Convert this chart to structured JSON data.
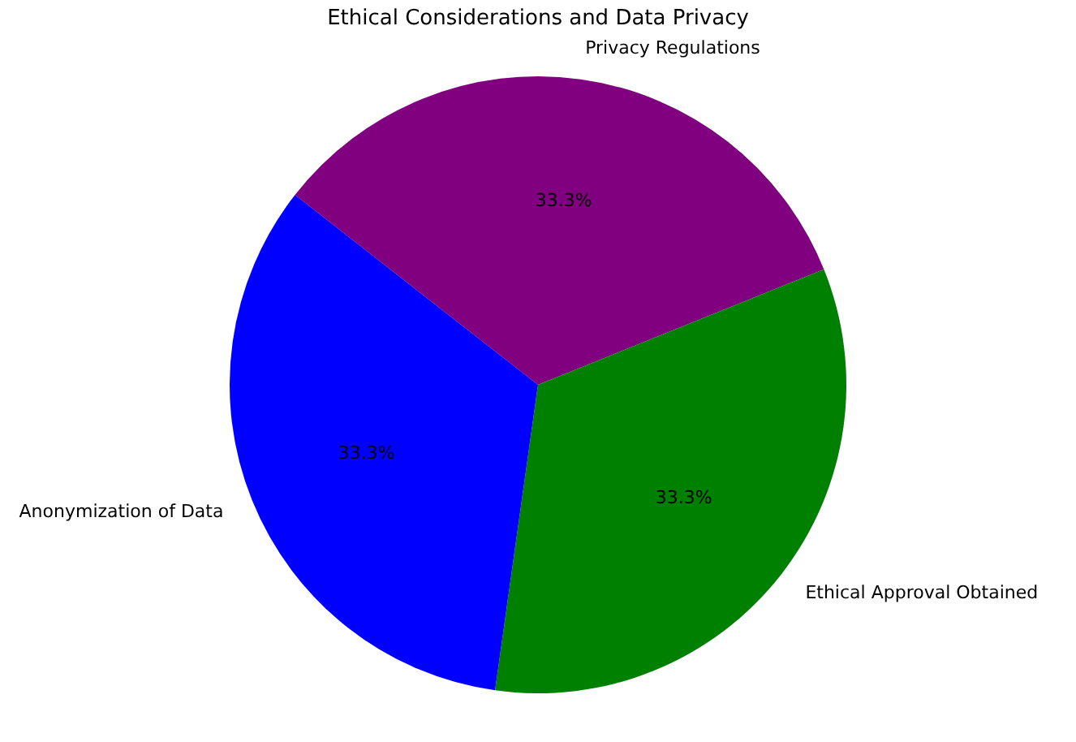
{
  "chart_data": {
    "type": "pie",
    "title": "Ethical Considerations and Data Privacy",
    "categories": [
      "Privacy Regulations",
      "Ethical Approval Obtained",
      "Anonymization of Data"
    ],
    "values": [
      33.3,
      33.3,
      33.3
    ],
    "colors": [
      "#800080",
      "#008000",
      "#0000ff"
    ],
    "value_labels": [
      "33.3%",
      "33.3%",
      "33.3%"
    ],
    "legend": false
  }
}
